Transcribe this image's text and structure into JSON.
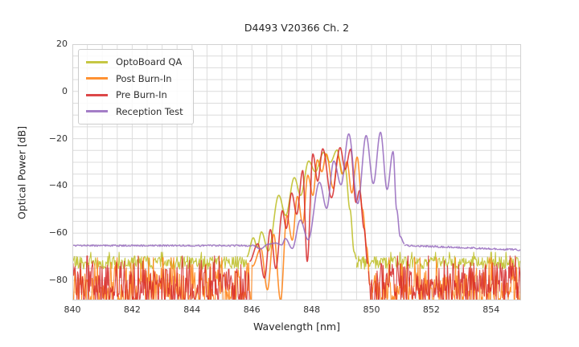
{
  "chart_data": {
    "type": "line",
    "title": "D4493 V20366 Ch. 2",
    "xlabel": "Wavelength [nm]",
    "ylabel": "Optical Power [dB]",
    "xlim": [
      840,
      855
    ],
    "ylim": [
      -88.5,
      20
    ],
    "xticks": [
      {
        "value": 840,
        "label": "840"
      },
      {
        "value": 842,
        "label": "842"
      },
      {
        "value": 844,
        "label": "844"
      },
      {
        "value": 846,
        "label": "846"
      },
      {
        "value": 848,
        "label": "848"
      },
      {
        "value": 850,
        "label": "850"
      },
      {
        "value": 852,
        "label": "852"
      },
      {
        "value": 854,
        "label": "854"
      }
    ],
    "yticks": [
      {
        "value": 20,
        "label": "20"
      },
      {
        "value": 0,
        "label": "0"
      },
      {
        "value": -20,
        "label": "−20"
      },
      {
        "value": -40,
        "label": "−40"
      },
      {
        "value": -60,
        "label": "−60"
      },
      {
        "value": -80,
        "label": "−80"
      }
    ],
    "grid": {
      "x_step_nm": 0.5,
      "y_step_db": 5,
      "color": "#dcdcdc",
      "frame_color": "#d2d2d2"
    },
    "legend_position": "upper left",
    "line_opacity": 0.85,
    "series": [
      {
        "name": "OptoBoard QA",
        "color": "#bcbd22",
        "floor_width": 1.1,
        "envelope_width": 1.6,
        "floors": [
          {
            "from": 840.0,
            "to": 845.83,
            "type": "band",
            "top": -69.7,
            "depth": 5.6,
            "bias": 1.0,
            "seed": 11
          },
          {
            "from": 849.5,
            "to": 855.0,
            "type": "band",
            "top": -69.7,
            "depth": 5.6,
            "bias": 1.0,
            "seed": 12
          }
        ],
        "envelope": [
          [
            845.83,
            -70
          ],
          [
            846.05,
            -62
          ],
          [
            846.18,
            -66
          ],
          [
            846.32,
            -59.5
          ],
          [
            846.55,
            -67.5
          ],
          [
            846.9,
            -44
          ],
          [
            847.13,
            -52.5
          ],
          [
            847.42,
            -36.5
          ],
          [
            847.63,
            -44
          ],
          [
            847.9,
            -29.5
          ],
          [
            848.12,
            -34
          ],
          [
            848.4,
            -25.8
          ],
          [
            848.62,
            -30
          ],
          [
            848.85,
            -24.8
          ],
          [
            849.02,
            -35
          ],
          [
            849.12,
            -32.5
          ],
          [
            849.28,
            -50
          ],
          [
            849.42,
            -68
          ],
          [
            849.5,
            -71
          ]
        ]
      },
      {
        "name": "Post Burn-In",
        "color": "#ff7f0e",
        "floor_width": 1.1,
        "envelope_width": 1.6,
        "floors": [
          {
            "from": 840.0,
            "to": 846.02,
            "type": "band",
            "top": -72.0,
            "depth": 20,
            "bias": 0.7,
            "seed": 21
          },
          {
            "from": 849.97,
            "to": 855.0,
            "type": "band",
            "top": -72.0,
            "depth": 20,
            "bias": 0.7,
            "seed": 22
          }
        ],
        "envelope": [
          [
            846.02,
            -74
          ],
          [
            846.3,
            -66.5
          ],
          [
            846.52,
            -84
          ],
          [
            846.73,
            -60.5
          ],
          [
            846.96,
            -88.4
          ],
          [
            847.17,
            -52.5
          ],
          [
            847.35,
            -63
          ],
          [
            847.52,
            -44.5
          ],
          [
            847.7,
            -56
          ],
          [
            847.87,
            -35.5
          ],
          [
            848.04,
            -44
          ],
          [
            848.19,
            -29
          ],
          [
            848.34,
            -34
          ],
          [
            848.49,
            -26.5
          ],
          [
            848.72,
            -41
          ],
          [
            848.88,
            -27.5
          ],
          [
            849.04,
            -35
          ],
          [
            849.18,
            -29.8
          ],
          [
            849.34,
            -43
          ],
          [
            849.52,
            -27.8
          ],
          [
            849.7,
            -50
          ],
          [
            849.84,
            -66
          ],
          [
            849.95,
            -82
          ]
        ]
      },
      {
        "name": "Pre Burn-In",
        "color": "#d62728",
        "floor_width": 1.1,
        "envelope_width": 1.6,
        "floors": [
          {
            "from": 840.0,
            "to": 845.92,
            "type": "band",
            "top": -71.3,
            "depth": 19,
            "bias": 0.75,
            "seed": 31
          },
          {
            "from": 849.9,
            "to": 855.0,
            "type": "band",
            "top": -71.3,
            "depth": 19,
            "bias": 0.75,
            "seed": 32
          }
        ],
        "envelope": [
          [
            845.92,
            -72
          ],
          [
            846.2,
            -64.5
          ],
          [
            846.42,
            -79
          ],
          [
            846.62,
            -58.5
          ],
          [
            846.8,
            -75
          ],
          [
            847.02,
            -50.5
          ],
          [
            847.15,
            -58
          ],
          [
            847.33,
            -43
          ],
          [
            847.5,
            -52
          ],
          [
            847.7,
            -33.5
          ],
          [
            847.85,
            -72
          ],
          [
            848.04,
            -26.5
          ],
          [
            848.2,
            -38
          ],
          [
            848.37,
            -24.3
          ],
          [
            848.66,
            -45
          ],
          [
            848.95,
            -23.8
          ],
          [
            849.12,
            -33
          ],
          [
            849.3,
            -24.5
          ],
          [
            849.48,
            -47
          ],
          [
            849.6,
            -42
          ],
          [
            849.75,
            -58
          ],
          [
            849.87,
            -73
          ]
        ]
      },
      {
        "name": "Reception Test",
        "color": "#9467bd",
        "floor_width": 1.3,
        "envelope_width": 1.6,
        "floors": [
          {
            "from": 840.0,
            "to": 846.05,
            "type": "line",
            "level_from": -65.3,
            "level_to": -65.3,
            "amp": 0.35,
            "seed": 41
          },
          {
            "from": 851.1,
            "to": 855.0,
            "type": "line",
            "level_from": -65.2,
            "level_to": -67.1,
            "amp": 0.4,
            "seed": 42
          }
        ],
        "envelope": [
          [
            846.05,
            -65.3
          ],
          [
            846.28,
            -66.7
          ],
          [
            846.55,
            -64.7
          ],
          [
            846.8,
            -64.2
          ],
          [
            847.0,
            -65.0
          ],
          [
            847.12,
            -62.3
          ],
          [
            847.35,
            -66.5
          ],
          [
            847.62,
            -54.5
          ],
          [
            847.88,
            -62.8
          ],
          [
            848.26,
            -38.5
          ],
          [
            848.5,
            -49.5
          ],
          [
            848.74,
            -29.5
          ],
          [
            848.98,
            -39.5
          ],
          [
            849.24,
            -18.0
          ],
          [
            849.54,
            -47.5
          ],
          [
            849.82,
            -18.7
          ],
          [
            850.06,
            -39.0
          ],
          [
            850.3,
            -17.3
          ],
          [
            850.52,
            -41.5
          ],
          [
            850.72,
            -25.5
          ],
          [
            850.84,
            -50
          ],
          [
            850.96,
            -61.5
          ],
          [
            851.1,
            -64.5
          ]
        ]
      }
    ]
  }
}
